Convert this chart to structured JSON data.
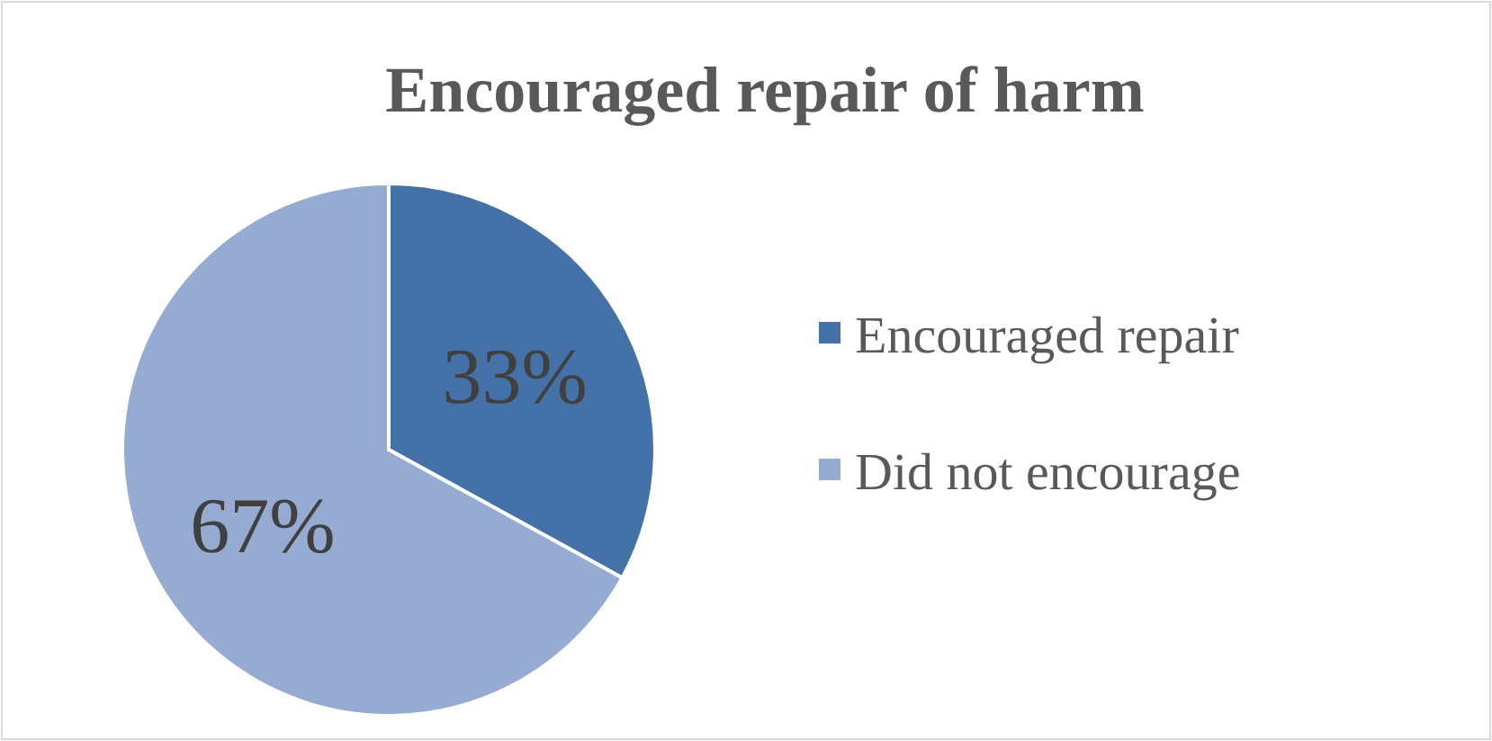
{
  "chart_data": {
    "type": "pie",
    "title": "Encouraged repair of harm",
    "categories": [
      "Encouraged repair",
      "Did not encourage"
    ],
    "values": [
      33,
      67
    ],
    "colors": [
      "#4472a8",
      "#95abd2"
    ],
    "value_labels": [
      "33%",
      "67%"
    ],
    "legend": "right"
  }
}
